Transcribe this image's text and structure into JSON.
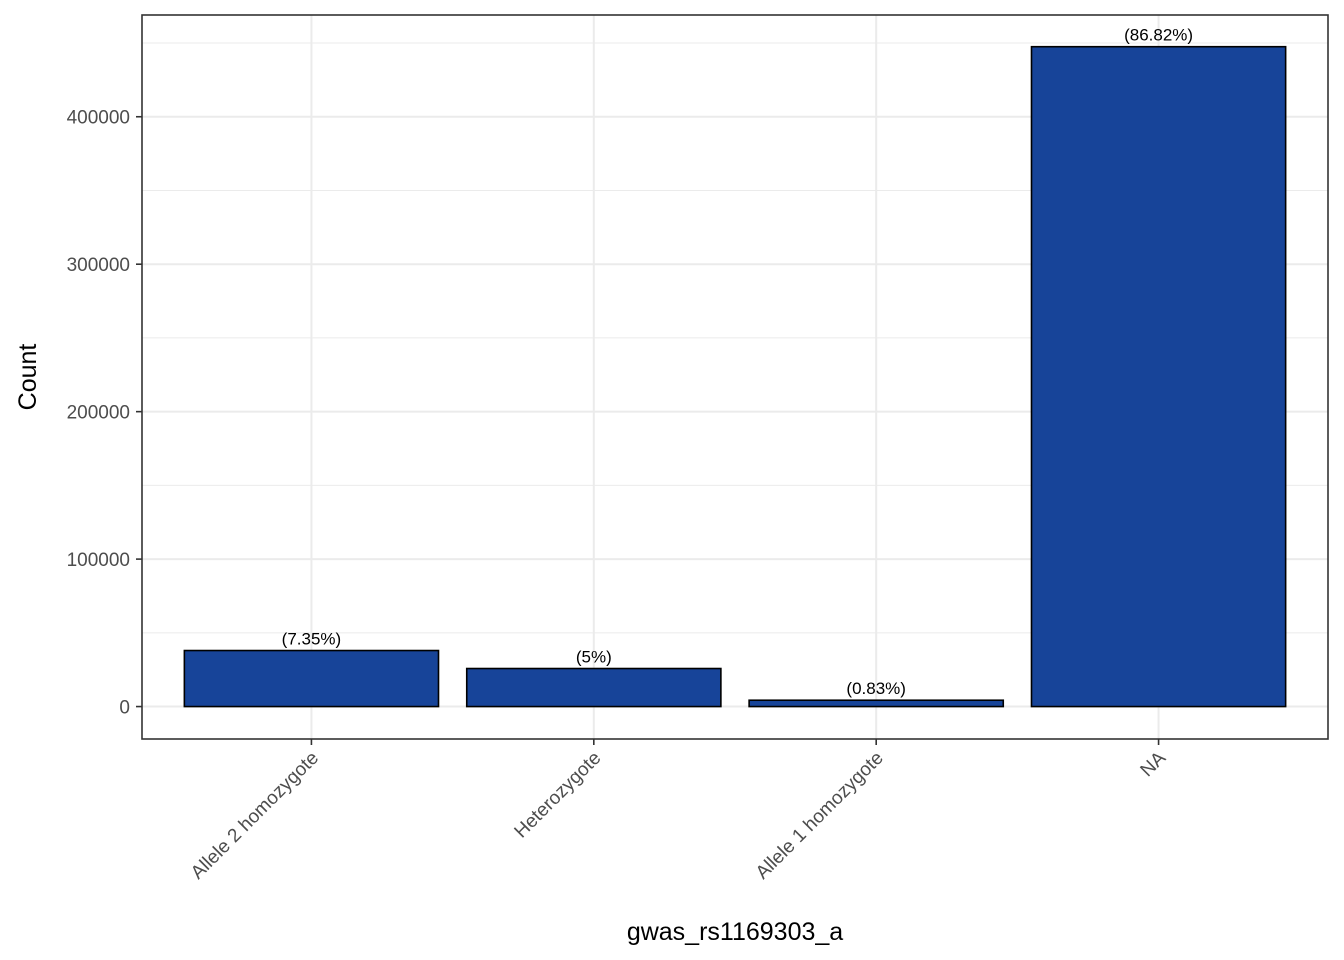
{
  "chart_data": {
    "type": "bar",
    "title": "",
    "xlabel": "gwas_rs1169303_a",
    "ylabel": "Count",
    "categories": [
      "Allele 2 homozygote",
      "Heterozygote",
      "Allele 1 homozygote",
      "NA"
    ],
    "values": [
      38000,
      25800,
      4300,
      447500
    ],
    "labels": [
      "(7.35%)",
      "(5%)",
      "(0.83%)",
      "(86.82%)"
    ],
    "ylim": [
      -22000,
      469000
    ],
    "yticks": [
      0,
      100000,
      200000,
      300000,
      400000
    ],
    "ytick_labels": [
      "0",
      "100000",
      "200000",
      "300000",
      "400000"
    ],
    "grid": true,
    "legend": "none",
    "colors": {
      "bar_fill": "#174499",
      "bar_stroke": "#000000",
      "grid": "#ebebeb",
      "panel_border": "#333333",
      "tick_text": "#4d4d4d"
    }
  }
}
